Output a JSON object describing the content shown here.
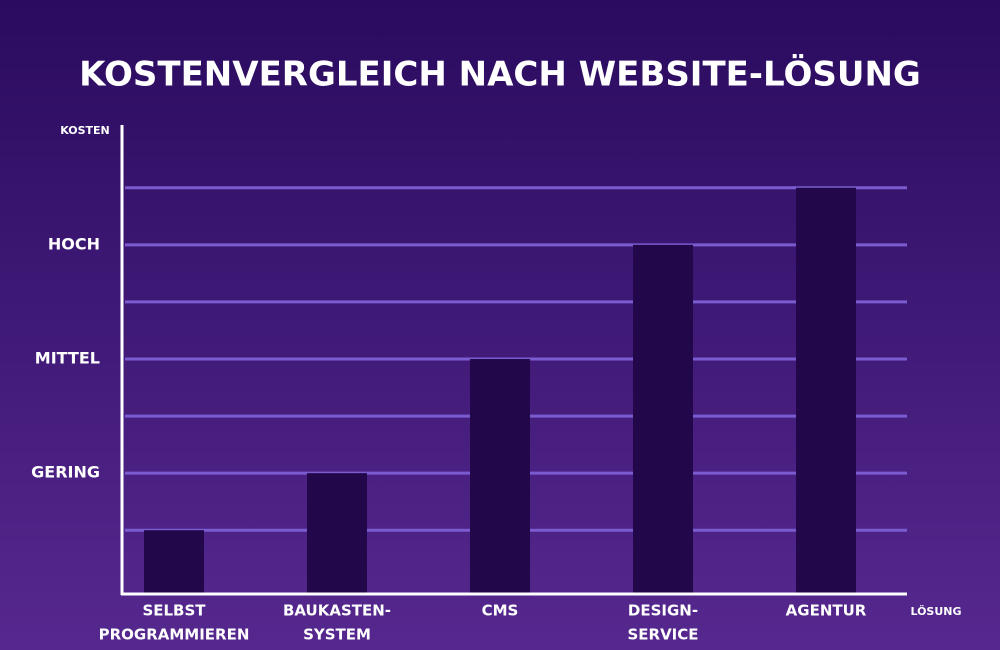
{
  "chart_data": {
    "type": "bar",
    "title": "KOSTENVERGLEICH NACH WEBSITE-LÖSUNG",
    "y_label": "KOSTEN",
    "x_label": "LÖSUNG",
    "categories": [
      [
        "SELBST",
        "PROGRAMMIEREN"
      ],
      [
        "BAUKASTEN-",
        "SYSTEM"
      ],
      [
        "CMS"
      ],
      [
        "DESIGN-",
        "SERVICE"
      ],
      [
        "AGENTUR"
      ]
    ],
    "values": [
      1.1,
      2.1,
      4.1,
      6.1,
      7.1
    ],
    "color": "#22084a",
    "ylim": [
      0,
      8.2
    ],
    "yticks": [
      {
        "value": 2.1,
        "label": "GERING"
      },
      {
        "value": 4.1,
        "label": "MITTEL"
      },
      {
        "value": 6.1,
        "label": "HOCH"
      }
    ],
    "grid_lines": [
      1.1,
      2.1,
      3.1,
      4.1,
      5.1,
      6.1,
      7.1
    ],
    "grid_color": "#7a5bd0"
  }
}
